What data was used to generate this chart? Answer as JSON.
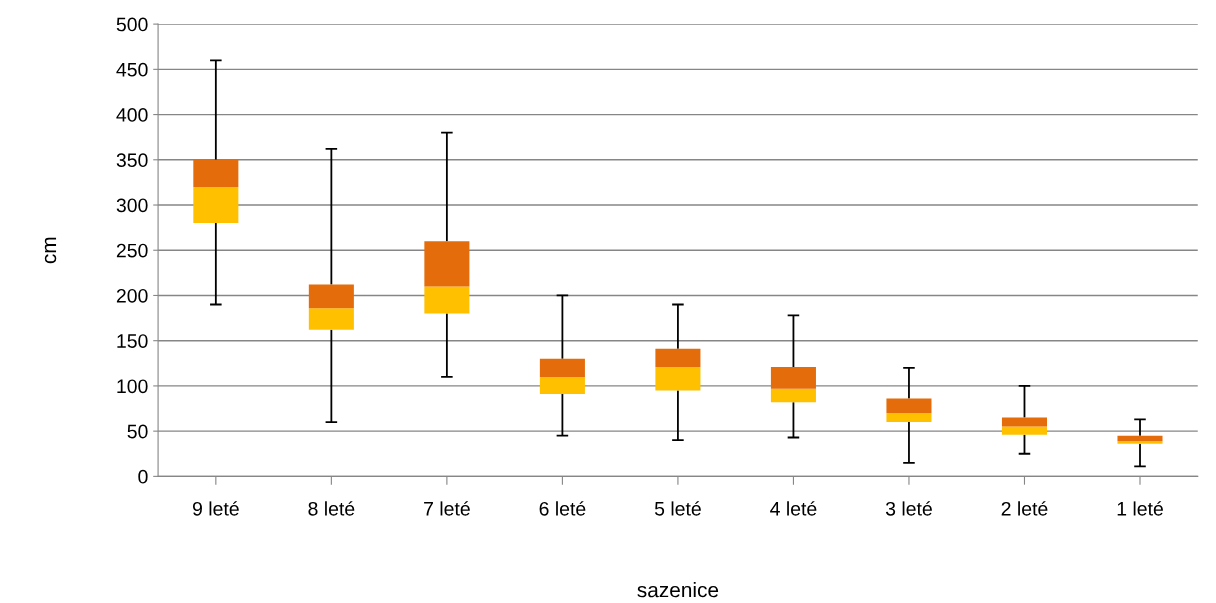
{
  "chart_data": {
    "type": "box",
    "xlabel": "sazenice",
    "ylabel": "cm",
    "categories": [
      "9 leté",
      "8 leté",
      "7 leté",
      "6 leté",
      "5 leté",
      "4 leté",
      "3 leté",
      "2 leté",
      "1 leté"
    ],
    "boxes": [
      {
        "low": 190,
        "q1": 280,
        "median": 320,
        "q3": 350,
        "high": 460
      },
      {
        "low": 60,
        "q1": 162,
        "median": 186,
        "q3": 212,
        "high": 362
      },
      {
        "low": 110,
        "q1": 180,
        "median": 210,
        "q3": 260,
        "high": 380
      },
      {
        "low": 45,
        "q1": 91,
        "median": 110,
        "q3": 130,
        "high": 200
      },
      {
        "low": 40,
        "q1": 95,
        "median": 121,
        "q3": 141,
        "high": 190
      },
      {
        "low": 43,
        "q1": 82,
        "median": 97,
        "q3": 121,
        "high": 178
      },
      {
        "low": 15,
        "q1": 60,
        "median": 70,
        "q3": 86,
        "high": 120
      },
      {
        "low": 25,
        "q1": 46,
        "median": 55,
        "q3": 65,
        "high": 100
      },
      {
        "low": 11,
        "q1": 36,
        "median": 39,
        "q3": 45,
        "high": 63
      }
    ],
    "colors": [
      [
        "#ffc000",
        "#e46c0a"
      ],
      [
        "#ffc000",
        "#e46c0a"
      ],
      [
        "#ffc000",
        "#e46c0a"
      ],
      [
        "#ffc000",
        "#e46c0a"
      ],
      [
        "#ffc000",
        "#e46c0a"
      ],
      [
        "#ffc000",
        "#e46c0a"
      ],
      [
        "#ffc000",
        "#e46c0a"
      ],
      [
        "#ffc000",
        "#e46c0a"
      ],
      [
        "#ffc000",
        "#e46c0a"
      ]
    ],
    "ylim": [
      0,
      500
    ],
    "yticks": [
      0,
      50,
      100,
      150,
      200,
      250,
      300,
      350,
      400,
      450,
      500
    ],
    "grid": "y",
    "legend": false
  }
}
